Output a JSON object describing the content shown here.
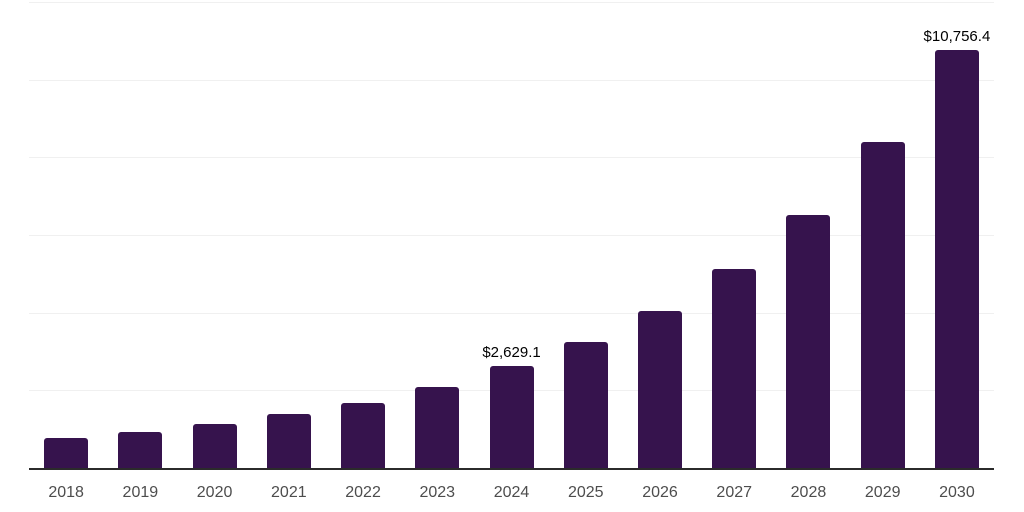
{
  "chart_data": {
    "type": "bar",
    "title": "",
    "xlabel": "",
    "ylabel": "",
    "categories": [
      "2018",
      "2019",
      "2020",
      "2021",
      "2022",
      "2023",
      "2024",
      "2025",
      "2026",
      "2027",
      "2028",
      "2029",
      "2030"
    ],
    "values": [
      785,
      935,
      1125,
      1385,
      1680,
      2095,
      2629.1,
      3245,
      4045,
      5125,
      6515,
      8395,
      10756.4
    ],
    "value_labels": [
      "",
      "",
      "",
      "",
      "",
      "",
      "$2,629.1",
      "",
      "",
      "",
      "",
      "",
      "$10,756.4"
    ],
    "labeled_values": {
      "2024": 2629.1,
      "2030": 10756.4
    },
    "ylim": [
      0,
      12000
    ],
    "gridline_step": 2000,
    "grid": "horizontal",
    "legend": "none",
    "y_axis_tick_labels": "none",
    "colors": {
      "bar": "#36134d",
      "gridline": "#f0f0f0",
      "axis_line": "#2b2b2b",
      "tick_label": "#4d4d4d",
      "value_label": "#000000",
      "background": "#ffffff"
    }
  }
}
